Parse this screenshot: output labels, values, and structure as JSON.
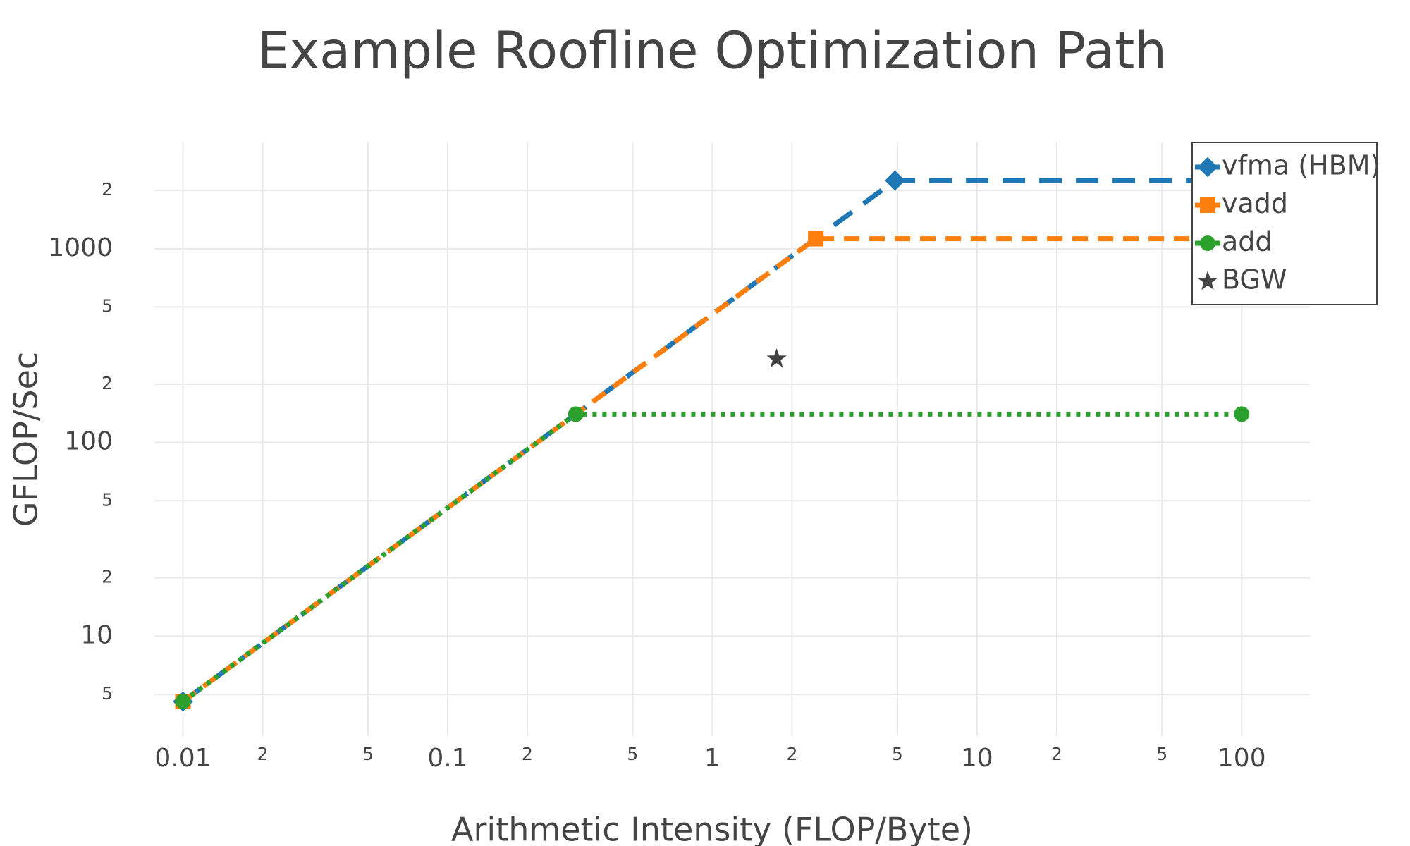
{
  "chart_data": {
    "type": "line",
    "title": "Example Roofline Optimization Path",
    "x_label": "Arithmetic Intensity (FLOP/Byte)",
    "y_label": "GFLOP/Sec",
    "log_x": true,
    "log_y": true,
    "grid": true,
    "legend": "top-right",
    "xlim": [
      0.0078,
      181
    ],
    "ylim": [
      3.05,
      3540
    ],
    "xticks": [
      0.01,
      {
        "value": 0.02,
        "label": "2"
      },
      {
        "value": 0.05,
        "label": "5"
      },
      0.1,
      {
        "value": 0.2,
        "label": "2"
      },
      {
        "value": 0.5,
        "label": "5"
      },
      1,
      {
        "value": 2,
        "label": "2"
      },
      {
        "value": 5,
        "label": "5"
      },
      10,
      {
        "value": 20,
        "label": "2"
      },
      {
        "value": 50,
        "label": "5"
      },
      100
    ],
    "yticks": [
      5,
      10,
      {
        "value": 20,
        "label": "2"
      },
      {
        "value": 50,
        "label": "5"
      },
      100,
      {
        "value": 200,
        "label": "2"
      },
      {
        "value": 500,
        "label": "5"
      },
      1000,
      {
        "value": 2000,
        "label": "2"
      }
    ],
    "series": [
      {
        "name": "vfma (HBM)",
        "color": "#1f77b4",
        "dash": "longdash",
        "marker": "diamond",
        "x": [
          0.01,
          4.9,
          100
        ],
        "values": [
          4.6,
          2250,
          2250
        ]
      },
      {
        "name": "vadd",
        "color": "#ff7f0e",
        "dash": "dash",
        "marker": "square",
        "x": [
          0.01,
          2.46,
          100
        ],
        "values": [
          4.6,
          1127,
          1127
        ]
      },
      {
        "name": "add",
        "color": "#2ca02c",
        "dash": "dot",
        "marker": "circle",
        "x": [
          0.01,
          0.305,
          100
        ],
        "values": [
          4.6,
          140,
          140
        ]
      },
      {
        "name": "BGW",
        "color": "#444444",
        "dash": "none",
        "marker": "star",
        "x": [
          1.75
        ],
        "values": [
          270
        ]
      }
    ]
  }
}
